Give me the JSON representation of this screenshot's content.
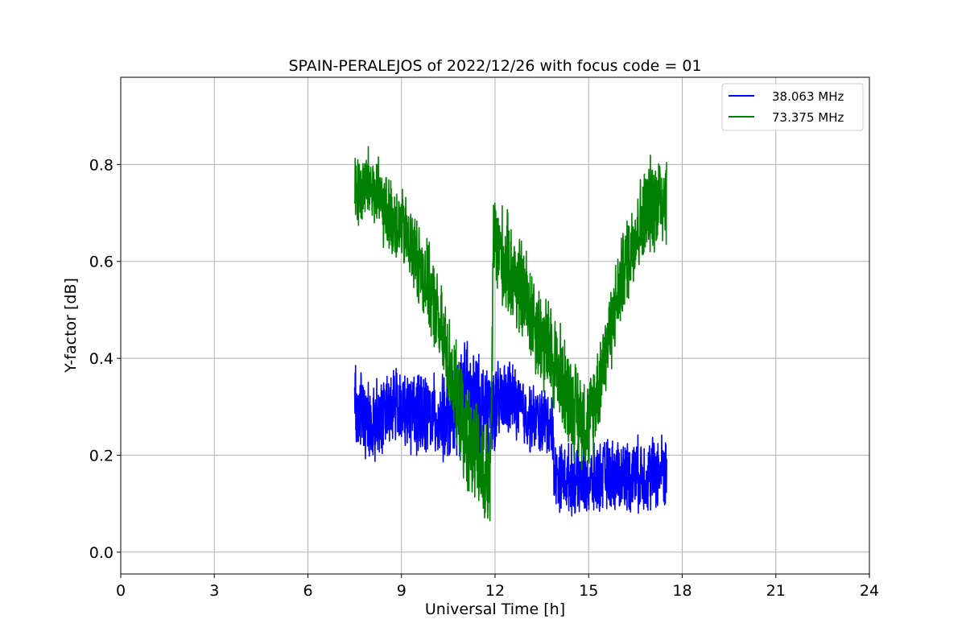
{
  "chart_data": {
    "type": "line",
    "title": "SPAIN-PERALEJOS of 2022/12/26 with focus code = 01",
    "xlabel": "Universal Time [h]",
    "ylabel": "Y-factor [dB]",
    "xlim": [
      0,
      24
    ],
    "ylim": [
      -0.045,
      0.98
    ],
    "xticks": [
      0,
      3,
      6,
      9,
      12,
      15,
      18,
      21,
      24
    ],
    "xtick_labels": [
      "0",
      "3",
      "6",
      "9",
      "12",
      "15",
      "18",
      "21",
      "24"
    ],
    "yticks": [
      0.0,
      0.2,
      0.4,
      0.6,
      0.8
    ],
    "ytick_labels": [
      "0.0",
      "0.2",
      "0.4",
      "0.6",
      "0.8"
    ],
    "grid": true,
    "legend_position": "top-right",
    "series": [
      {
        "name": "38.063 MHz",
        "color": "#0000ff",
        "x_range": [
          7.5,
          17.5
        ],
        "profile": [
          [
            7.5,
            0.3
          ],
          [
            8.0,
            0.26
          ],
          [
            8.5,
            0.29
          ],
          [
            9.0,
            0.3
          ],
          [
            9.5,
            0.29
          ],
          [
            10.0,
            0.28
          ],
          [
            10.5,
            0.27
          ],
          [
            11.0,
            0.33
          ],
          [
            11.5,
            0.3
          ],
          [
            12.0,
            0.3
          ],
          [
            12.5,
            0.32
          ],
          [
            13.0,
            0.28
          ],
          [
            13.5,
            0.27
          ],
          [
            13.85,
            0.26
          ],
          [
            13.9,
            0.16
          ],
          [
            14.5,
            0.15
          ],
          [
            15.0,
            0.14
          ],
          [
            15.5,
            0.16
          ],
          [
            16.0,
            0.16
          ],
          [
            16.5,
            0.16
          ],
          [
            17.0,
            0.16
          ],
          [
            17.5,
            0.17
          ]
        ],
        "noise": [
          [
            7.5,
            0.1
          ],
          [
            8.5,
            0.09
          ],
          [
            10.5,
            0.1
          ],
          [
            11.0,
            0.13
          ],
          [
            12.0,
            0.1
          ],
          [
            13.0,
            0.08
          ],
          [
            13.85,
            0.08
          ],
          [
            13.9,
            0.08
          ],
          [
            15.0,
            0.08
          ],
          [
            17.5,
            0.09
          ]
        ]
      },
      {
        "name": "73.375 MHz",
        "color": "#008000",
        "x_range": [
          7.5,
          17.5
        ],
        "profile": [
          [
            7.5,
            0.74
          ],
          [
            8.0,
            0.76
          ],
          [
            8.5,
            0.7
          ],
          [
            9.0,
            0.67
          ],
          [
            9.5,
            0.61
          ],
          [
            10.0,
            0.52
          ],
          [
            10.5,
            0.4
          ],
          [
            11.0,
            0.25
          ],
          [
            11.5,
            0.18
          ],
          [
            11.85,
            0.14
          ],
          [
            11.95,
            0.64
          ],
          [
            12.5,
            0.58
          ],
          [
            13.0,
            0.52
          ],
          [
            13.5,
            0.44
          ],
          [
            14.0,
            0.38
          ],
          [
            14.5,
            0.3
          ],
          [
            15.0,
            0.26
          ],
          [
            15.5,
            0.4
          ],
          [
            16.0,
            0.55
          ],
          [
            16.5,
            0.66
          ],
          [
            17.0,
            0.72
          ],
          [
            17.5,
            0.74
          ]
        ],
        "noise": [
          [
            7.5,
            0.09
          ],
          [
            9.0,
            0.09
          ],
          [
            10.5,
            0.11
          ],
          [
            11.5,
            0.13
          ],
          [
            11.95,
            0.12
          ],
          [
            13.0,
            0.12
          ],
          [
            14.0,
            0.12
          ],
          [
            15.0,
            0.11
          ],
          [
            16.0,
            0.1
          ],
          [
            17.5,
            0.12
          ]
        ]
      }
    ]
  }
}
